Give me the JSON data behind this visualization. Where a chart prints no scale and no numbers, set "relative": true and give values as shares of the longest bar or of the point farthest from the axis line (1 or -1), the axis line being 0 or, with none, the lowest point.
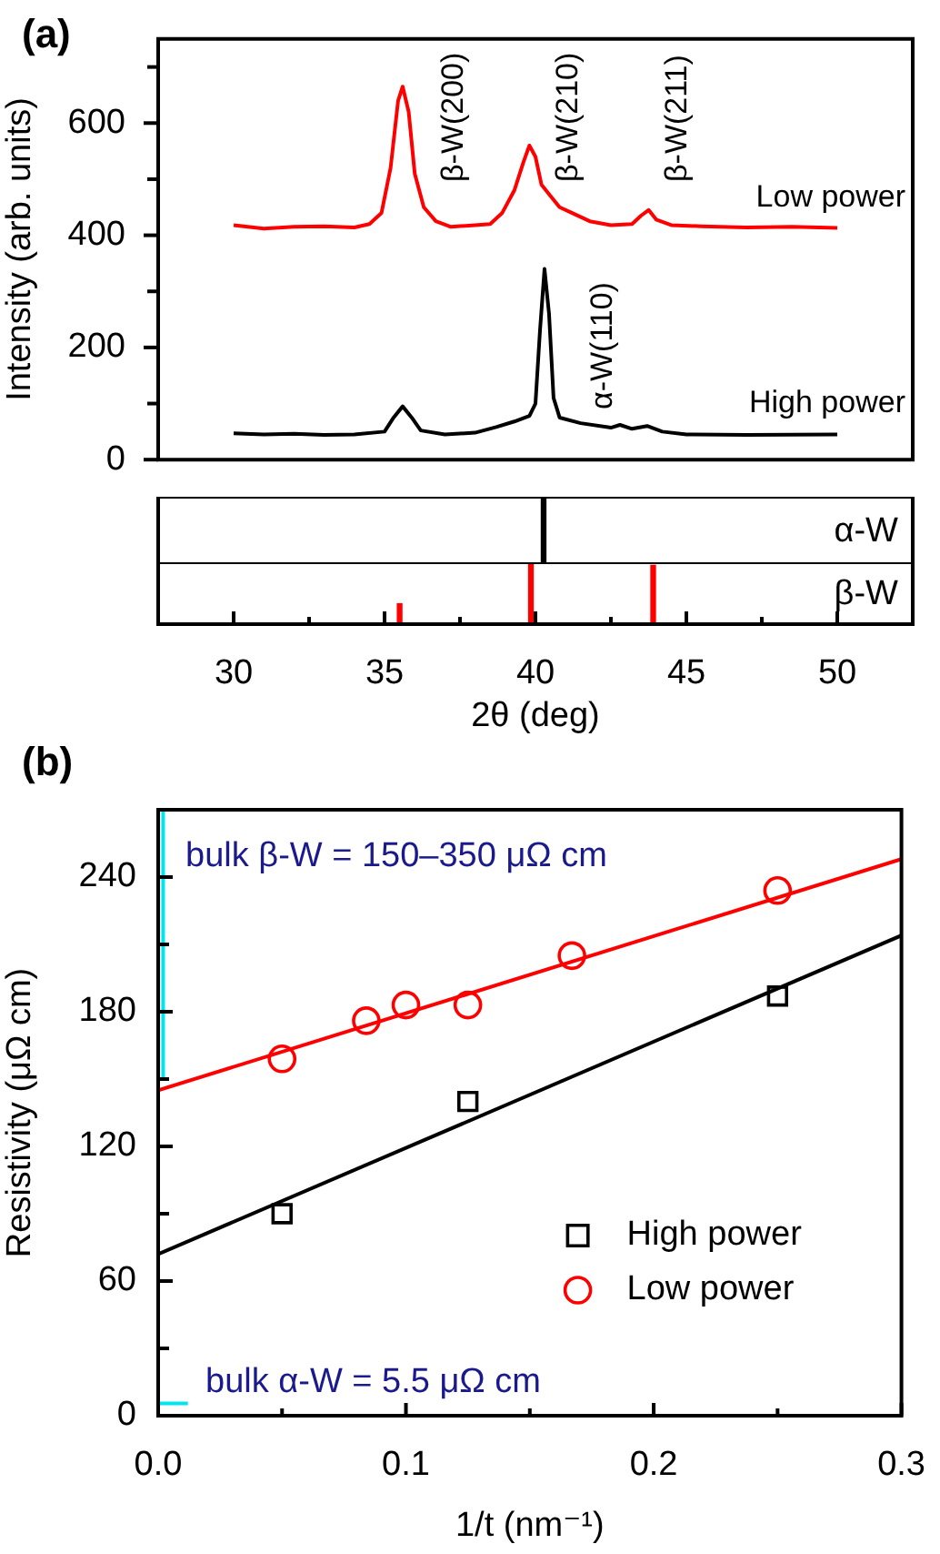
{
  "chart_data": [
    {
      "type": "line",
      "title": "(a)",
      "ylabel": "Intensity (arb. units)",
      "xlim": [
        27.5,
        52.5
      ],
      "ylim": [
        0,
        750
      ],
      "yticks": [
        0,
        {
          "value": 100,
          "label": null
        },
        200,
        {
          "value": 300,
          "label": null
        },
        400,
        {
          "value": 500,
          "label": null
        },
        600,
        {
          "value": 700,
          "label": null
        }
      ],
      "tick_labels": "y",
      "marker": "none",
      "annotations": [
        "β-W(200)",
        "β-W(210)",
        "β-W(211)",
        "α-W(110)"
      ],
      "series": [
        {
          "name": "Low power",
          "color": "#ff0000",
          "x": [
            30,
            31,
            32,
            33,
            34,
            34.5,
            34.9,
            35.2,
            35.45,
            35.6,
            35.8,
            36.0,
            36.3,
            36.7,
            37.2,
            38,
            38.5,
            38.9,
            39.3,
            39.6,
            39.8,
            40.0,
            40.2,
            40.5,
            40.8,
            41.2,
            41.8,
            42.5,
            43.2,
            43.5,
            43.75,
            44.0,
            44.5,
            45.5,
            47,
            48.5,
            50
          ],
          "values": [
            418,
            412,
            415,
            416,
            414,
            420,
            440,
            520,
            640,
            665,
            620,
            510,
            450,
            425,
            415,
            418,
            420,
            440,
            480,
            530,
            560,
            540,
            490,
            470,
            450,
            440,
            425,
            418,
            420,
            435,
            445,
            428,
            418,
            416,
            414,
            415,
            413
          ]
        },
        {
          "name": "High power",
          "color": "#000000",
          "x": [
            30,
            31,
            32,
            33,
            34,
            35,
            35.3,
            35.6,
            35.9,
            36.2,
            37,
            38,
            38.7,
            39.3,
            39.8,
            40.0,
            40.15,
            40.3,
            40.45,
            40.6,
            40.8,
            41.5,
            42.5,
            42.8,
            43.2,
            43.7,
            44.2,
            45,
            47,
            50
          ],
          "values": [
            47,
            45,
            46,
            44,
            45,
            50,
            75,
            95,
            75,
            52,
            45,
            48,
            58,
            68,
            78,
            100,
            230,
            340,
            260,
            110,
            75,
            65,
            57,
            62,
            55,
            60,
            50,
            45,
            44,
            45
          ]
        }
      ]
    },
    {
      "type": "bar",
      "title": "α-W",
      "relative": true,
      "x": [
        40.27
      ],
      "values": [
        1
      ],
      "color": "#000000",
      "xlim": [
        27.5,
        52.5
      ],
      "tick_labels": false
    },
    {
      "type": "bar",
      "title": "β-W",
      "relative": true,
      "x": [
        35.5,
        39.85,
        43.9
      ],
      "values": [
        0.33,
        1,
        0.95
      ],
      "color": "#ff0000",
      "xlim": [
        27.5,
        52.5
      ],
      "xticks": [
        30,
        {
          "value": 32.5,
          "label": null
        },
        35,
        {
          "value": 37.5,
          "label": null
        },
        40,
        {
          "value": 42.5,
          "label": null
        },
        45,
        {
          "value": 47.5,
          "label": null
        },
        50
      ],
      "xlabel": "2θ (deg)",
      "tick_labels": "x"
    },
    {
      "type": "scatter",
      "title": "(b)",
      "xlabel": "1/t (nm⁻¹)",
      "ylabel": "Resistivity (μΩ cm)",
      "xlim": [
        0,
        0.3
      ],
      "xticks": [
        {
          "value": 0,
          "label": "0.0"
        },
        {
          "value": 0.05,
          "label": null
        },
        0.1,
        {
          "value": 0.15,
          "label": null
        },
        0.2,
        {
          "value": 0.25,
          "label": null
        },
        0.3
      ],
      "ylim": [
        0,
        270
      ],
      "yticks": [
        0,
        {
          "value": 30,
          "label": null
        },
        60,
        {
          "value": 90,
          "label": null
        },
        120,
        {
          "value": 150,
          "label": null
        },
        180,
        {
          "value": 210,
          "label": null
        },
        240
      ],
      "legend": "bottom right",
      "annotations": [
        "bulk β-W = 150–350 μΩ cm",
        "bulk α-W = 5.5 μΩ cm"
      ],
      "series": [
        {
          "name": "High power",
          "color": "#000000",
          "marker": "square",
          "x": [
            0.05,
            0.125,
            0.25
          ],
          "values": [
            90,
            140,
            187
          ]
        },
        {
          "name": "Low power",
          "color": "#ff0000",
          "marker": "circle",
          "x": [
            0.05,
            0.084,
            0.1,
            0.125,
            0.167,
            0.25
          ],
          "values": [
            159,
            176,
            183,
            183,
            205,
            234
          ]
        },
        {
          "type": "line",
          "color": "#000000",
          "marker": "none",
          "x": [
            0,
            0.3
          ],
          "values": [
            72,
            214
          ]
        },
        {
          "type": "line",
          "color": "#00e5ee",
          "marker": "none",
          "x": [
            0.002,
            0.002
          ],
          "values": [
            150,
            270
          ]
        },
        {
          "type": "line",
          "color": "#00e5ee",
          "marker": "none",
          "x": [
            0,
            0.012
          ],
          "values": [
            5.5,
            5.5
          ]
        },
        {
          "type": "line",
          "color": "#ff0000",
          "marker": "none",
          "x": [
            0,
            0.3
          ],
          "values": [
            145,
            248
          ]
        }
      ]
    }
  ]
}
